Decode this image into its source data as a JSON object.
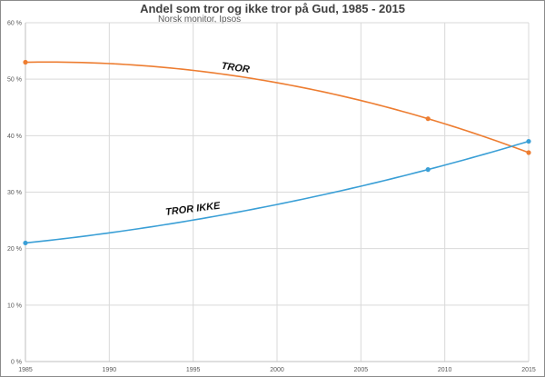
{
  "chart_data": {
    "type": "line",
    "title": "Andel som tror og ikke tror på Gud, 1985 - 2015",
    "subtitle": "Norsk monitor, Ipsos",
    "xlabel": "",
    "ylabel": "",
    "xlim": [
      1985,
      2015
    ],
    "ylim": [
      0,
      60
    ],
    "x_ticks": [
      "1985",
      "1990",
      "1995",
      "2000",
      "2005",
      "2010",
      "2015"
    ],
    "y_ticks": [
      "0 %",
      "10 %",
      "20 %",
      "30 %",
      "40 %",
      "50 %",
      "60 %"
    ],
    "grid": true,
    "legend": "none",
    "x": [
      1985,
      2009,
      2015
    ],
    "series": [
      {
        "name": "TROR",
        "values": [
          53,
          43,
          37
        ],
        "color": "#ed7d31",
        "label_at": [
          1997.5,
          51.5
        ],
        "label_angle": 8
      },
      {
        "name": "TROR IKKE",
        "values": [
          21,
          34,
          39
        ],
        "color": "#3a9fd6",
        "label_at": [
          1995,
          26.5
        ],
        "label_angle": -7
      }
    ]
  }
}
